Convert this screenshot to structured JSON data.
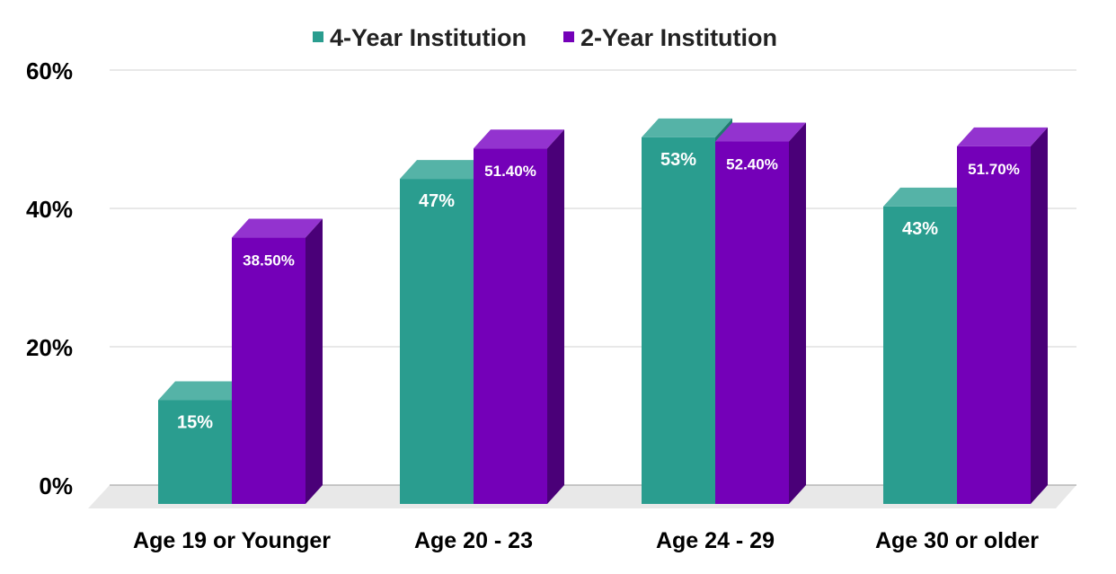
{
  "chart_data": {
    "type": "bar",
    "categories": [
      "Age 19 or Younger",
      "Age 20 - 23",
      "Age 24 - 29",
      "Age 30 or older"
    ],
    "series": [
      {
        "name": "4-Year Institution",
        "values": [
          15,
          47,
          53,
          43
        ],
        "labels": [
          "15%",
          "47%",
          "53%",
          "43%"
        ]
      },
      {
        "name": "2-Year Institution",
        "values": [
          38.5,
          51.4,
          52.4,
          51.7
        ],
        "labels": [
          "38.50%",
          "51.40%",
          "52.40%",
          "51.70%"
        ]
      }
    ],
    "yticks": [
      "0%",
      "20%",
      "40%",
      "60%"
    ],
    "ylim": [
      0,
      60
    ],
    "grid": true,
    "legend_position": "top-center",
    "colors": {
      "4-Year Institution": {
        "front": "#2a9d8f",
        "top": "#55b3a7",
        "side": "#1f7a6f"
      },
      "2-Year Institution": {
        "front": "#7400b8",
        "top": "#9333cf",
        "side": "#4a0078"
      }
    }
  }
}
